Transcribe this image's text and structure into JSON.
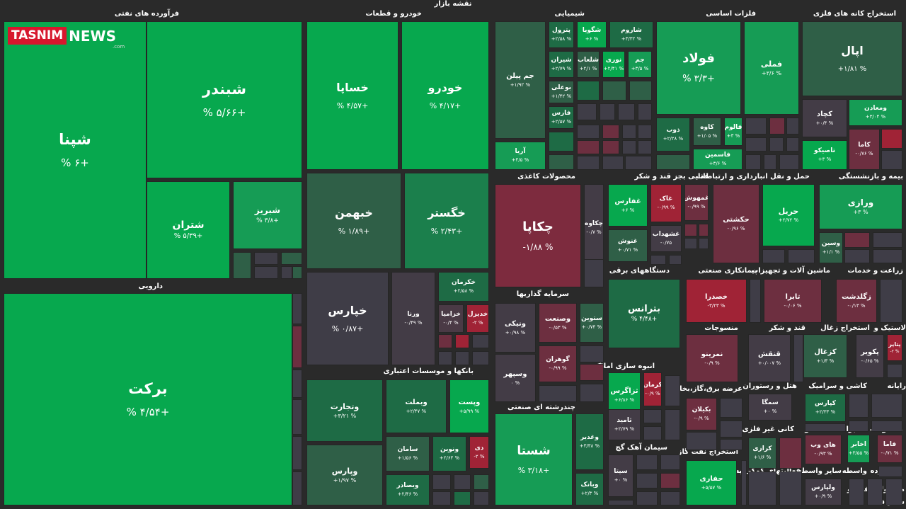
{
  "title": "نقشه بازار",
  "logo": {
    "brand": "TASNIM",
    "news": "NEWS",
    "domain": ".com"
  },
  "sectors": [
    "فرآورده های نفتی",
    "خودرو و قطعات",
    "شیمیایی",
    "فلزات اساسی",
    "استخراج کانه های فلزی",
    "دارویی",
    "محصولات کاغذی",
    "غذایی بجز قند و شکر",
    "انبوه سازی املاک و",
    "سرمایه گذاریها",
    "بانکها و موسسات اعتباری",
    "چندرشته ای صنعتی",
    "حمل و نقل انبارداری و ارتباطات",
    "بیمه و بازنشستگی",
    "دستگاههای برقی",
    "پیمانکاری صنعتی",
    "ماشین آلات و تجهیزات",
    "زراعت و خدمات",
    "منسوجات",
    "قند و شکر",
    "استخراج زغال",
    "لاستیک و",
    "عرضه برق،گاز،بخار و",
    "هتل و رستوران",
    "کاشی و سرامیک",
    "رایانه",
    "سیمان آهک گچ",
    "کانی غیر فلزی",
    "اطلاعات و",
    "مخابرات",
    "محصولات",
    "استخراج نفت گاز",
    "فعالیتهای کمکی به",
    "سایر واسطه",
    "واسطه",
    "خرده",
    "محصولات فنی و",
    "فعا",
    "سایر"
  ],
  "tiles": [
    {
      "name": "شپنا",
      "pct": "% ۶+",
      "color": "#07a84e"
    },
    {
      "name": "شبندر",
      "pct": "% ۵/۶۶+",
      "color": "#07a84e"
    },
    {
      "name": "شتران",
      "pct": "% ۵/۳۹+",
      "color": "#07a84e"
    },
    {
      "name": "شبریز",
      "pct": "% ۳/۸+",
      "color": "#169c55"
    },
    {
      "name": "خساپا",
      "pct": "% ۴/۵۷+",
      "color": "#07a84e"
    },
    {
      "name": "خودرو",
      "pct": "% ۴/۱۷+",
      "color": "#07a84e"
    },
    {
      "name": "خبهمن",
      "pct": "% ۱/۸۹+",
      "color": "#2f5f47"
    },
    {
      "name": "خگستر",
      "pct": "% ۲/۴۳+",
      "color": "#1b7f4c"
    },
    {
      "name": "خپارس",
      "pct": "% ۰/۸۷+",
      "color": "#3f3d47"
    },
    {
      "name": "ورنا",
      "pct": "-۰/۴۹ %",
      "color": "#433c46"
    },
    {
      "name": "خکرمان",
      "pct": "+۲/۵۸ %",
      "color": "#1e6b45"
    },
    {
      "name": "خزامیا",
      "pct": "-۰/۴ %",
      "color": "#4a3a45"
    },
    {
      "name": "خدیزل",
      "pct": "-۲ %",
      "color": "#a02336"
    },
    {
      "name": "برکت",
      "pct": "% ۴/۵۴+",
      "color": "#07a84e"
    },
    {
      "name": "وتجارت",
      "pct": "+۳/۲۱ %",
      "color": "#1e6b45"
    },
    {
      "name": "وبملت",
      "pct": "+۲/۴۷ %",
      "color": "#1e6b45"
    },
    {
      "name": "وپست",
      "pct": "+۵/۹۹ %",
      "color": "#07a84e"
    },
    {
      "name": "سامان",
      "pct": "+۱/۵۶ %",
      "color": "#2f5f47"
    },
    {
      "name": "ونوین",
      "pct": "+۲/۶۳ %",
      "color": "#1e6b45"
    },
    {
      "name": "دی",
      "pct": "-۲ %",
      "color": "#a02336"
    },
    {
      "name": "وپارس",
      "pct": "+۱/۹۷ %",
      "color": "#2f5f47"
    },
    {
      "name": "وبصادر",
      "pct": "+۲/۴۶ %",
      "color": "#1e6b45"
    },
    {
      "name": "جم پیلن",
      "pct": "+۱/۹۲ %",
      "color": "#2f5f47"
    },
    {
      "name": "آریا",
      "pct": "+۴/۵ %",
      "color": "#169c55"
    },
    {
      "name": "پترول",
      "pct": "+۲/۵۸ %",
      "color": "#1e6b45"
    },
    {
      "name": "شگویا",
      "pct": "+۶ %",
      "color": "#07a84e"
    },
    {
      "name": "شاروم",
      "pct": "+۳/۳۲ %",
      "color": "#1e6b45"
    },
    {
      "name": "شیران",
      "pct": "+۲/۷۹ %",
      "color": "#1e6b45"
    },
    {
      "name": "شلعاب",
      "pct": "+۲/۱ %",
      "color": "#2f5f47"
    },
    {
      "name": "نوری",
      "pct": "+۲/۴۱ %",
      "color": "#07a84e"
    },
    {
      "name": "جم",
      "pct": "+۳/۵ %",
      "color": "#169c55"
    },
    {
      "name": "بوعلی",
      "pct": "+۱/۴۲ %",
      "color": "#2f5f47"
    },
    {
      "name": "فارس",
      "pct": "+۲/۵۷ %",
      "color": "#1e6b45"
    },
    {
      "name": "فولاد",
      "pct": "% ۳/۳+",
      "color": "#169c55"
    },
    {
      "name": "فملی",
      "pct": "+۳/۶ %",
      "color": "#169c55"
    },
    {
      "name": "کاوه",
      "pct": "+۱/۰۵ %",
      "color": "#2f5f47"
    },
    {
      "name": "فالوم",
      "pct": "+۳ %",
      "color": "#169c55"
    },
    {
      "name": "ذوب",
      "pct": "+۲/۲۸ %",
      "color": "#1e6b45"
    },
    {
      "name": "فاسمین",
      "pct": "+۳/۶ %",
      "color": "#169c55"
    },
    {
      "name": "اپال",
      "pct": "+۱/۸۱ %",
      "color": "#2f5f47"
    },
    {
      "name": "کچاد",
      "pct": "+۰/۴ %",
      "color": "#433c46"
    },
    {
      "name": "ومعادن",
      "pct": "+۳/۰۴ %",
      "color": "#169c55"
    },
    {
      "name": "تاصیکو",
      "pct": "+۳ %",
      "color": "#07a84e"
    },
    {
      "name": "کاما",
      "pct": "-۰/۷۶ %",
      "color": "#6d2f40"
    },
    {
      "name": "چکاپا",
      "pct": "-۱/۸۸ %",
      "color": "#7d2b3e"
    },
    {
      "name": "چکاوه",
      "pct": "-۰/۷ %",
      "color": "#433c46"
    },
    {
      "name": "غفارس",
      "pct": "+۶ %",
      "color": "#07a84e"
    },
    {
      "name": "غاک",
      "pct": "-۰/۹۹ %",
      "color": "#a02336"
    },
    {
      "name": "غمهوش",
      "pct": "-۰/۹۹ %",
      "color": "#6d2f40"
    },
    {
      "name": "غشهداب",
      "pct": "-۰/۷۵",
      "color": "#433c46"
    },
    {
      "name": "غنوش",
      "pct": "+۰/۷۱ %",
      "color": "#2f5f47"
    },
    {
      "name": "حکشتی",
      "pct": "-۰/۹۶ %",
      "color": "#6d2f40"
    },
    {
      "name": "حریل",
      "pct": "+۲/۷۲ %",
      "color": "#07a84e"
    },
    {
      "name": "ورازی",
      "pct": "+۳ %",
      "color": "#169c55"
    },
    {
      "name": "وسین",
      "pct": "+۱/۱ %",
      "color": "#2f5f47"
    },
    {
      "name": "ونیکی",
      "pct": "+۰/۹۸ %",
      "color": "#433c46"
    },
    {
      "name": "وصنعت",
      "pct": "-۰/۵۳ %",
      "color": "#6d2f40"
    },
    {
      "name": "ستوین",
      "pct": "+۰/۷۴ %",
      "color": "#2f5f47"
    },
    {
      "name": "وسپهر",
      "pct": "۰ %",
      "color": "#433c46"
    },
    {
      "name": "گوهران",
      "pct": "-۰/۹۹ %",
      "color": "#6d2f40"
    },
    {
      "name": "شستا",
      "pct": "% ۳/۱۸+",
      "color": "#169c55"
    },
    {
      "name": "وغدیر",
      "pct": "+۳/۳۸ %",
      "color": "#1e6b45"
    },
    {
      "name": "وبانک",
      "pct": "+۲/۳ %",
      "color": "#1e6b45"
    },
    {
      "name": "بترانس",
      "pct": "% ۴/۴۸+",
      "color": "#1e6b45"
    },
    {
      "name": "ثزاگرس",
      "pct": "+۶/۸۶ %",
      "color": "#07a84e"
    },
    {
      "name": "کرمان",
      "pct": "-۰/۹ %",
      "color": "#a02336"
    },
    {
      "name": "ثامید",
      "pct": "+۲/۷۹ %",
      "color": "#433c46"
    },
    {
      "name": "سیتا",
      "pct": "+۰ %",
      "color": "#433c46"
    },
    {
      "name": "خصدرا",
      "pct": "-۳/۲۳ %",
      "color": "#a02336"
    },
    {
      "name": "تابرا",
      "pct": "-۰/۰۶ %",
      "color": "#6d2f40"
    },
    {
      "name": "زگلدشت",
      "pct": "-۰/۱۳ %",
      "color": "#6d2f40"
    },
    {
      "name": "نمرینو",
      "pct": "-۰/۹ %",
      "color": "#6d2f40"
    },
    {
      "name": "قنقش",
      "pct": "+۰/۰۰۷ %",
      "color": "#433c46"
    },
    {
      "name": "کزغال",
      "pct": "+۱/۳ %",
      "color": "#2f5f47"
    },
    {
      "name": "پکویر",
      "pct": "-۰/۶۵ %",
      "color": "#433c46"
    },
    {
      "name": "پتایر",
      "pct": "-۲ %",
      "color": "#a02336"
    },
    {
      "name": "بکیلان",
      "pct": "-۰/۹ %",
      "color": "#6d2f40"
    },
    {
      "name": "سمگا",
      "pct": "+۰ %",
      "color": "#433c46"
    },
    {
      "name": "کپارس",
      "pct": "+۲/۳۳ %",
      "color": "#1e6b45"
    },
    {
      "name": "کرازی",
      "pct": "+۱/۶ %",
      "color": "#2f5f47"
    },
    {
      "name": "های وب",
      "pct": "-۰/۹۳ %",
      "color": "#6d2f40"
    },
    {
      "name": "اخابر",
      "pct": "+۳/۵۵ %",
      "color": "#169c55"
    },
    {
      "name": "فاما",
      "pct": "-۰/۷۱ %",
      "color": "#6d2f40"
    },
    {
      "name": "حفاری",
      "pct": "+۵/۵۷ %",
      "color": "#07a84e"
    },
    {
      "name": "ولپارس",
      "pct": "+۰/۹ %",
      "color": "#433c46"
    }
  ]
}
